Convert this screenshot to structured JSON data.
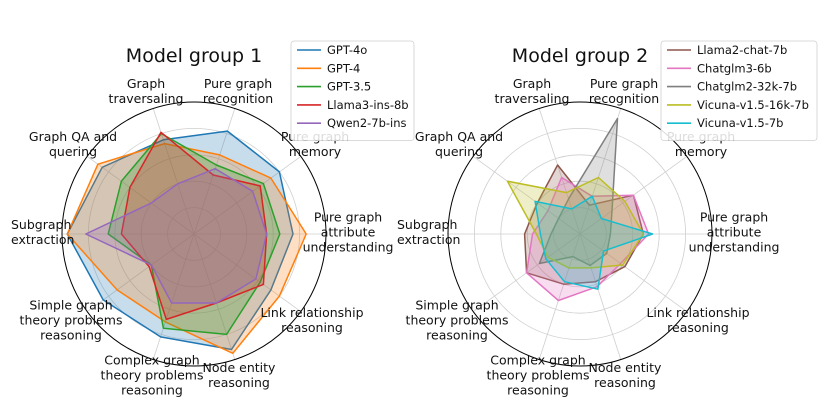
{
  "chart_data": [
    {
      "type": "radar",
      "title": "Model group 1",
      "categories": [
        "Pure graph recognition",
        "Pure graph memory",
        "Pure graph attribute understanding",
        "Link relationship reasoning",
        "Node entity reasoning",
        "Complex graph theory problems reasoning",
        "Simple graph theory problems reasoning",
        "Subgraph extraction",
        "Graph QA and quering",
        "Graph traversaling"
      ],
      "category_lines": [
        [
          "Pure graph",
          "recognition"
        ],
        [
          "Pure graph",
          "memory"
        ],
        [
          "Pure graph",
          "attribute",
          "understanding"
        ],
        [
          "Link relationship",
          "reasoning"
        ],
        [
          "Node entity",
          "reasoning"
        ],
        [
          "Complex graph",
          "theory problems",
          "reasoning"
        ],
        [
          "Simple graph",
          "theory problems",
          "reasoning"
        ],
        [
          "Subgraph",
          "extraction"
        ],
        [
          "Graph QA and",
          "quering"
        ],
        [
          "Graph",
          "traversaling"
        ]
      ],
      "rlim": [
        0,
        1
      ],
      "grid": true,
      "legend": "right of title",
      "series": [
        {
          "name": "GPT-4o",
          "color": "#1f77b4",
          "values": [
            0.82,
            0.8,
            0.75,
            0.72,
            0.92,
            0.82,
            0.85,
            0.96,
            0.86,
            0.75
          ]
        },
        {
          "name": "GPT-4",
          "color": "#ff7f0e",
          "values": [
            0.63,
            0.72,
            0.85,
            0.8,
            0.95,
            0.7,
            0.72,
            0.96,
            0.9,
            0.72
          ]
        },
        {
          "name": "GPT-3.5",
          "color": "#2ca02c",
          "values": [
            0.55,
            0.65,
            0.65,
            0.62,
            0.8,
            0.75,
            0.4,
            0.65,
            0.68,
            0.8
          ]
        },
        {
          "name": "Llama3-ins-8b",
          "color": "#d62728",
          "values": [
            0.47,
            0.62,
            0.55,
            0.65,
            0.55,
            0.68,
            0.42,
            0.55,
            0.6,
            0.81
          ]
        },
        {
          "name": "Qwen2-7b-ins",
          "color": "#9467bd",
          "values": [
            0.52,
            0.55,
            0.55,
            0.58,
            0.55,
            0.55,
            0.4,
            0.82,
            0.4,
            0.4
          ]
        }
      ]
    },
    {
      "type": "radar",
      "title": "Model group 2",
      "categories": [
        "Pure graph recognition",
        "Pure graph memory",
        "Pure graph attribute understanding",
        "Link relationship reasoning",
        "Node entity reasoning",
        "Complex graph theory problems reasoning",
        "Simple graph theory problems reasoning",
        "Subgraph extraction",
        "Graph QA and quering",
        "Graph traversaling"
      ],
      "category_lines": [
        [
          "Pure graph",
          "recognition"
        ],
        [
          "Pure graph",
          "memory"
        ],
        [
          "Pure graph",
          "attribute",
          "understanding"
        ],
        [
          "Link relationship",
          "reasoning"
        ],
        [
          "Node entity",
          "reasoning"
        ],
        [
          "Complex graph",
          "theory problems",
          "reasoning"
        ],
        [
          "Simple graph",
          "theory problems",
          "reasoning"
        ],
        [
          "Subgraph",
          "extraction"
        ],
        [
          "Graph QA and",
          "quering"
        ],
        [
          "Graph",
          "traversaling"
        ]
      ],
      "rlim": [
        0,
        1
      ],
      "grid": true,
      "legend": "upper right",
      "series": [
        {
          "name": "Llama2-chat-7b",
          "color": "#8c564b",
          "values": [
            0.23,
            0.5,
            0.48,
            0.42,
            0.38,
            0.4,
            0.5,
            0.42,
            0.4,
            0.55
          ]
        },
        {
          "name": "Chatglm3-6b",
          "color": "#e377c2",
          "values": [
            0.3,
            0.5,
            0.52,
            0.38,
            0.42,
            0.53,
            0.5,
            0.36,
            0.3,
            0.45
          ]
        },
        {
          "name": "Chatglm2-32k-7b",
          "color": "#7f7f7f",
          "values": [
            0.92,
            0.3,
            0.23,
            0.25,
            0.25,
            0.18,
            0.38,
            0.22,
            0.2,
            0.28
          ]
        },
        {
          "name": "Vicuna-v1.5-16k-7b",
          "color": "#bcbd22",
          "values": [
            0.45,
            0.42,
            0.48,
            0.4,
            0.27,
            0.27,
            0.3,
            0.33,
            0.68,
            0.33
          ]
        },
        {
          "name": "Vicuna-v1.5-7b",
          "color": "#17becf",
          "values": [
            0.3,
            0.2,
            0.55,
            0.22,
            0.44,
            0.38,
            0.32,
            0.3,
            0.42,
            0.2
          ]
        }
      ]
    }
  ]
}
